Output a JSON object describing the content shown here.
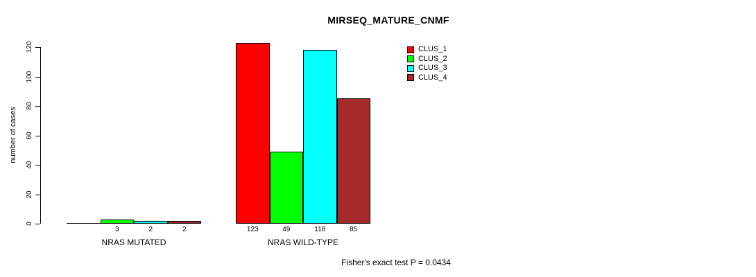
{
  "chart_data": {
    "type": "bar",
    "title": "MIRSEQ_MATURE_CNMF",
    "ylabel": "number of cases",
    "xlabel": "",
    "ylim": [
      0,
      120
    ],
    "yticks": [
      0,
      20,
      40,
      60,
      80,
      100,
      120
    ],
    "grid": false,
    "legend_position": "top-right-of-plot",
    "categories": [
      "NRAS MUTATED",
      "NRAS WILD-TYPE"
    ],
    "series": [
      {
        "name": "CLUS_1",
        "color": "#FF0000",
        "values": [
          0,
          123
        ],
        "bar_labels": [
          "",
          "123"
        ]
      },
      {
        "name": "CLUS_2",
        "color": "#00FF00",
        "values": [
          3,
          49
        ],
        "bar_labels": [
          "3",
          "49"
        ]
      },
      {
        "name": "CLUS_3",
        "color": "#00FFFF",
        "values": [
          2,
          118
        ],
        "bar_labels": [
          "2",
          "118"
        ]
      },
      {
        "name": "CLUS_4",
        "color": "#A52A2A",
        "values": [
          2,
          85
        ],
        "bar_labels": [
          "2",
          "85"
        ]
      }
    ],
    "annotation": "Fisher's exact test P = 0.0434",
    "axis_color": "#000000",
    "text_color": "#000000",
    "background_color": "#ffffff"
  }
}
